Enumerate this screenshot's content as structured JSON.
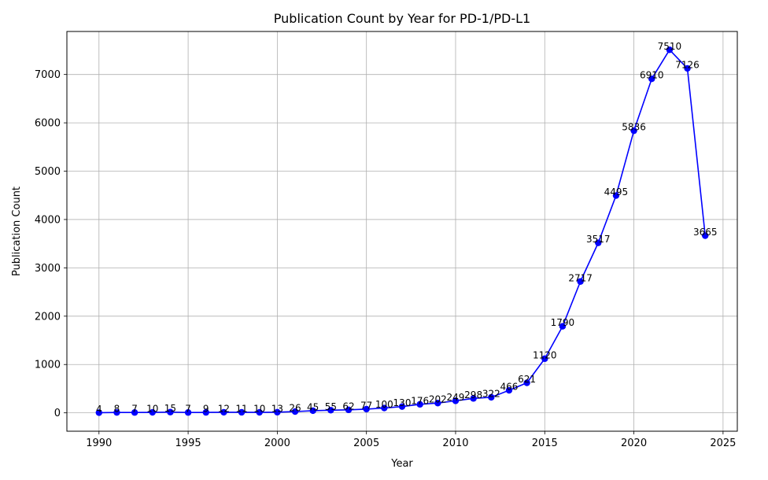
{
  "chart_data": {
    "type": "line",
    "title": "Publication Count by Year for PD-1/PD-L1",
    "xlabel": "Year",
    "ylabel": "Publication Count",
    "xlim": [
      1988.2,
      2025.8
    ],
    "ylim": [
      -380,
      7890
    ],
    "xticks": [
      1990,
      1995,
      2000,
      2005,
      2010,
      2015,
      2020,
      2025
    ],
    "yticks": [
      0,
      1000,
      2000,
      3000,
      4000,
      5000,
      6000,
      7000
    ],
    "grid": true,
    "series": [
      {
        "color": "#0000ff",
        "marker": "circle",
        "x": [
          1990,
          1991,
          1992,
          1993,
          1994,
          1995,
          1996,
          1997,
          1998,
          1999,
          2000,
          2001,
          2002,
          2003,
          2004,
          2005,
          2006,
          2007,
          2008,
          2009,
          2010,
          2011,
          2012,
          2013,
          2014,
          2015,
          2016,
          2017,
          2018,
          2019,
          2020,
          2021,
          2022,
          2023,
          2024
        ],
        "values": [
          4,
          8,
          7,
          10,
          15,
          7,
          9,
          12,
          11,
          10,
          13,
          26,
          45,
          55,
          62,
          77,
          100,
          130,
          176,
          202,
          249,
          298,
          322,
          466,
          621,
          1120,
          1790,
          2717,
          3517,
          4495,
          5836,
          6910,
          7510,
          7126,
          3665
        ]
      }
    ]
  }
}
